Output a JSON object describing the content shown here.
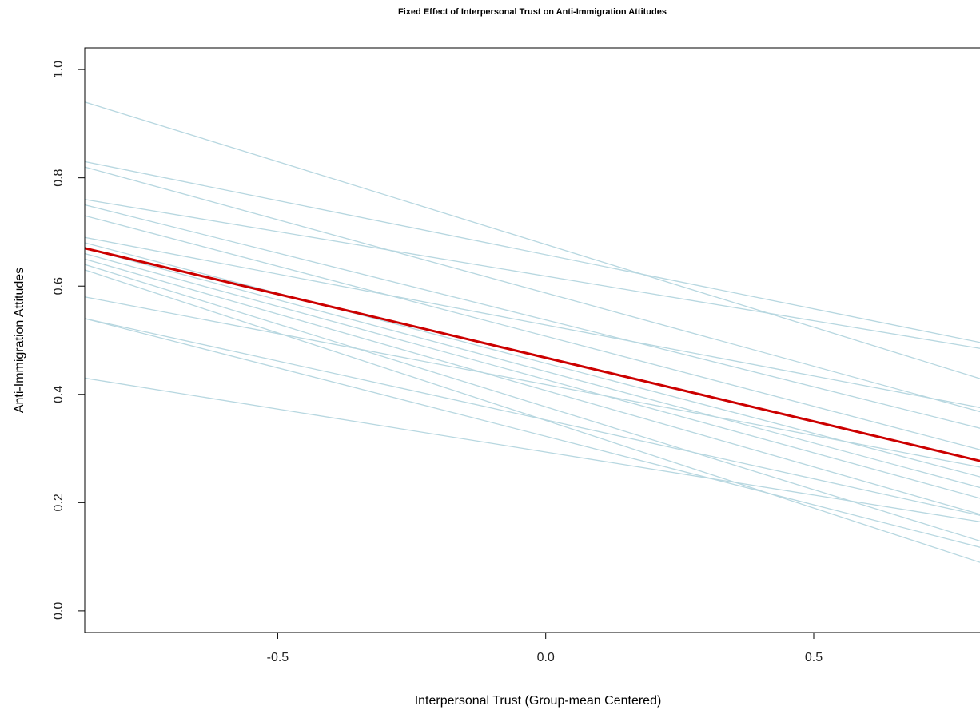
{
  "chart_data": {
    "type": "line",
    "title": "Fixed Effect of Interpersonal Trust on Anti-Immigration Attitudes",
    "xlabel": "Interpersonal Trust (Group-mean Centered)",
    "ylabel": "Anti-Immigration Attitudes",
    "xlim": [
      -0.86,
      0.84
    ],
    "ylim": [
      -0.04,
      1.04
    ],
    "xticks": [
      "-0.5",
      "0.0",
      "0.5"
    ],
    "yticks": [
      "0.0",
      "0.2",
      "0.4",
      "0.6",
      "0.8",
      "1.0"
    ],
    "grid": false,
    "legend": "none",
    "group_color": "#b7d7e0",
    "fixed_color": "#cc0000",
    "fixed_effect": {
      "y_start": 0.67,
      "y_end": 0.27
    },
    "group_lines": [
      {
        "y_start": 0.94,
        "y_end": 0.42
      },
      {
        "y_start": 0.83,
        "y_end": 0.49
      },
      {
        "y_start": 0.82,
        "y_end": 0.36
      },
      {
        "y_start": 0.76,
        "y_end": 0.48
      },
      {
        "y_start": 0.75,
        "y_end": 0.33
      },
      {
        "y_start": 0.73,
        "y_end": 0.29
      },
      {
        "y_start": 0.69,
        "y_end": 0.37
      },
      {
        "y_start": 0.68,
        "y_end": 0.24
      },
      {
        "y_start": 0.67,
        "y_end": 0.22
      },
      {
        "y_start": 0.66,
        "y_end": 0.2
      },
      {
        "y_start": 0.65,
        "y_end": 0.17
      },
      {
        "y_start": 0.64,
        "y_end": 0.12
      },
      {
        "y_start": 0.63,
        "y_end": 0.08
      },
      {
        "y_start": 0.58,
        "y_end": 0.26
      },
      {
        "y_start": 0.54,
        "y_end": 0.17
      },
      {
        "y_start": 0.54,
        "y_end": 0.11
      },
      {
        "y_start": 0.43,
        "y_end": 0.16
      }
    ]
  }
}
